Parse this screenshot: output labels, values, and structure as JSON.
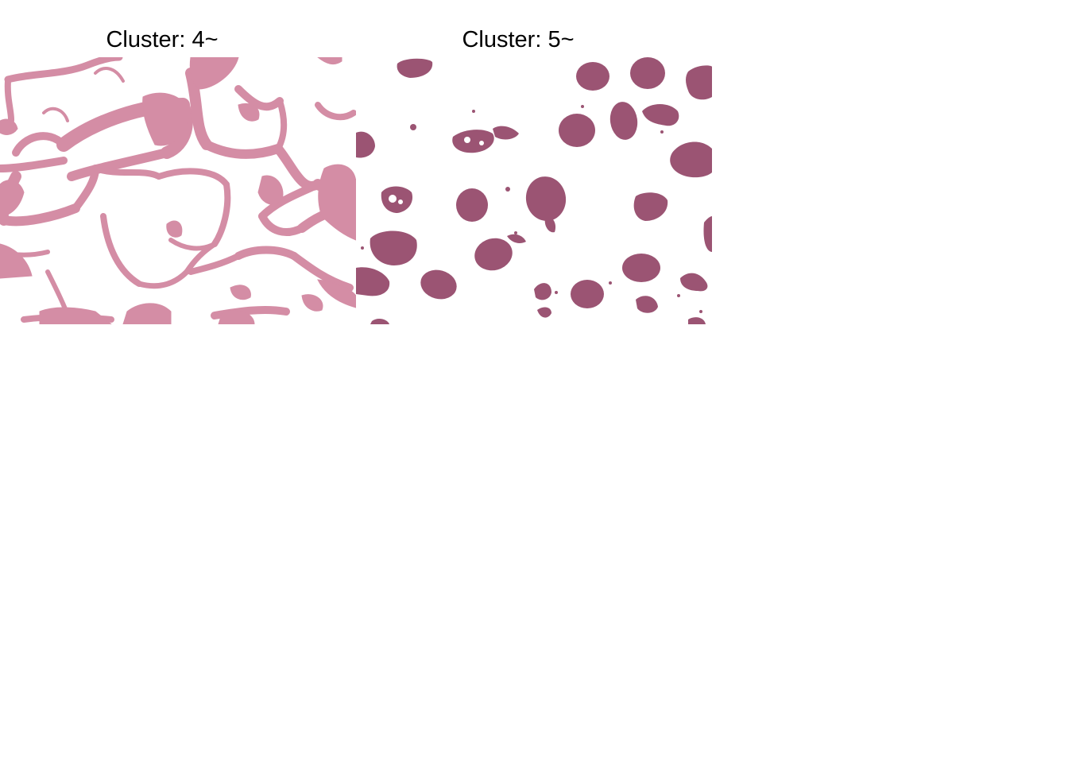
{
  "panels": [
    {
      "title": "Cluster: 4~",
      "color": "#d48da5"
    },
    {
      "title": "Cluster: 5~",
      "color": "#9b5473"
    }
  ]
}
